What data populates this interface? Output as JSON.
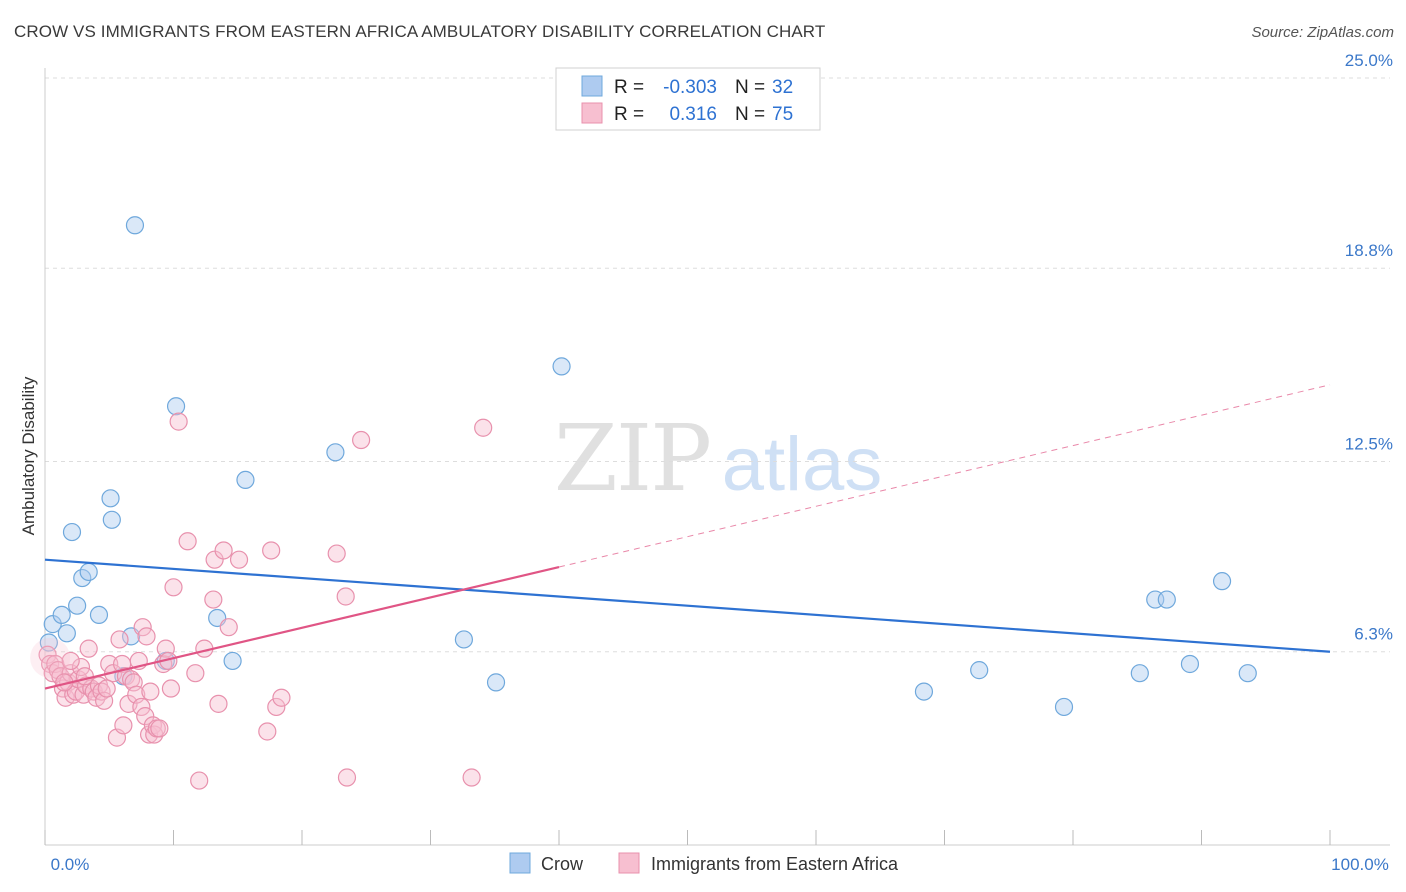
{
  "chart_data": {
    "type": "scatter",
    "title": "CROW VS IMMIGRANTS FROM EASTERN AFRICA AMBULATORY DISABILITY CORRELATION CHART",
    "source": "Source: ZipAtlas.com",
    "ylabel": "Ambulatory Disability",
    "xlabel": "",
    "xlim": [
      0,
      100
    ],
    "ylim": [
      0,
      25.0
    ],
    "x_tick_labels": {
      "min": "0.0%",
      "max": "100.0%"
    },
    "y_ticks": [
      {
        "value": 25.0,
        "label": "25.0%"
      },
      {
        "value": 18.8,
        "label": "18.8%"
      },
      {
        "value": 12.5,
        "label": "12.5%"
      },
      {
        "value": 6.3,
        "label": "6.3%"
      }
    ],
    "grid": true,
    "legend_placement": "bottom",
    "stats_box": [
      {
        "r_label": "R =",
        "r_value": "-0.303",
        "n_label": "N =",
        "n_value": "32"
      },
      {
        "r_label": "R =",
        "r_value": "0.316",
        "n_label": "N =",
        "n_value": "75"
      }
    ],
    "watermark": {
      "part1": "ZIP",
      "part2": "atlas"
    },
    "series": [
      {
        "name": "Crow",
        "color": "#6fa8dc",
        "fill": "#aecbf0",
        "trend_color": "#2e72d2",
        "trend": {
          "x0": 0,
          "y0": 9.3,
          "x1": 100,
          "y1": 6.3,
          "dashed_from": null
        },
        "points": [
          [
            0.3,
            6.6
          ],
          [
            0.6,
            7.2
          ],
          [
            1.3,
            7.5
          ],
          [
            1.7,
            6.9
          ],
          [
            2.1,
            10.2
          ],
          [
            2.5,
            7.8
          ],
          [
            2.9,
            8.7
          ],
          [
            3.4,
            8.9
          ],
          [
            4.2,
            7.5
          ],
          [
            5.1,
            11.3
          ],
          [
            5.2,
            10.6
          ],
          [
            6.1,
            5.5
          ],
          [
            6.7,
            6.8
          ],
          [
            7.0,
            20.2
          ],
          [
            9.4,
            6.0
          ],
          [
            10.2,
            14.3
          ],
          [
            13.4,
            7.4
          ],
          [
            14.6,
            6.0
          ],
          [
            15.6,
            11.9
          ],
          [
            22.6,
            12.8
          ],
          [
            32.6,
            6.7
          ],
          [
            35.1,
            5.3
          ],
          [
            40.2,
            15.6
          ],
          [
            68.4,
            5.0
          ],
          [
            72.7,
            5.7
          ],
          [
            79.3,
            4.5
          ],
          [
            85.2,
            5.6
          ],
          [
            86.4,
            8.0
          ],
          [
            87.3,
            8.0
          ],
          [
            89.1,
            5.9
          ],
          [
            91.6,
            8.6
          ],
          [
            93.6,
            5.6
          ]
        ]
      },
      {
        "name": "Immigrants from Eastern Africa",
        "color": "#e891ad",
        "fill": "#f7bfd0",
        "trend_color": "#e05585",
        "trend": {
          "x0": 0,
          "y0": 5.1,
          "x1": 100,
          "y1": 15.0,
          "dashed_from": 40
        },
        "points": [
          [
            0.2,
            6.2
          ],
          [
            0.4,
            5.9
          ],
          [
            0.6,
            5.6
          ],
          [
            0.8,
            5.9
          ],
          [
            1.0,
            5.7
          ],
          [
            1.2,
            5.5
          ],
          [
            1.4,
            5.1
          ],
          [
            1.6,
            4.8
          ],
          [
            1.8,
            5.3
          ],
          [
            2.0,
            5.6
          ],
          [
            2.2,
            4.9
          ],
          [
            2.4,
            5.0
          ],
          [
            2.6,
            5.4
          ],
          [
            2.8,
            5.8
          ],
          [
            3.0,
            4.9
          ],
          [
            3.2,
            5.2
          ],
          [
            3.4,
            6.4
          ],
          [
            3.6,
            5.1
          ],
          [
            3.8,
            5.0
          ],
          [
            4.0,
            4.8
          ],
          [
            4.2,
            5.2
          ],
          [
            4.4,
            5.0
          ],
          [
            4.6,
            4.7
          ],
          [
            5.0,
            5.9
          ],
          [
            5.3,
            5.6
          ],
          [
            5.6,
            3.5
          ],
          [
            5.8,
            6.7
          ],
          [
            6.0,
            5.9
          ],
          [
            6.1,
            3.9
          ],
          [
            6.3,
            5.5
          ],
          [
            6.5,
            4.6
          ],
          [
            6.7,
            5.4
          ],
          [
            6.9,
            5.3
          ],
          [
            7.1,
            4.9
          ],
          [
            7.3,
            6.0
          ],
          [
            7.5,
            4.5
          ],
          [
            7.6,
            7.1
          ],
          [
            7.8,
            4.2
          ],
          [
            7.9,
            6.8
          ],
          [
            8.1,
            3.6
          ],
          [
            8.2,
            5.0
          ],
          [
            8.4,
            3.9
          ],
          [
            8.5,
            3.6
          ],
          [
            8.7,
            3.8
          ],
          [
            8.9,
            3.8
          ],
          [
            9.2,
            5.9
          ],
          [
            9.4,
            6.4
          ],
          [
            9.6,
            6.0
          ],
          [
            9.8,
            5.1
          ],
          [
            10.0,
            8.4
          ],
          [
            10.4,
            13.8
          ],
          [
            11.1,
            9.9
          ],
          [
            11.7,
            5.6
          ],
          [
            12.0,
            2.1
          ],
          [
            12.4,
            6.4
          ],
          [
            13.1,
            8.0
          ],
          [
            13.2,
            9.3
          ],
          [
            13.5,
            4.6
          ],
          [
            13.9,
            9.6
          ],
          [
            14.3,
            7.1
          ],
          [
            15.1,
            9.3
          ],
          [
            17.3,
            3.7
          ],
          [
            17.6,
            9.6
          ],
          [
            18.0,
            4.5
          ],
          [
            18.4,
            4.8
          ],
          [
            22.7,
            9.5
          ],
          [
            23.4,
            8.1
          ],
          [
            23.5,
            2.2
          ],
          [
            24.6,
            13.2
          ],
          [
            33.2,
            2.2
          ],
          [
            34.1,
            13.6
          ],
          [
            2.0,
            6.0
          ],
          [
            1.5,
            5.3
          ],
          [
            3.1,
            5.5
          ],
          [
            4.8,
            5.1
          ]
        ]
      }
    ]
  }
}
